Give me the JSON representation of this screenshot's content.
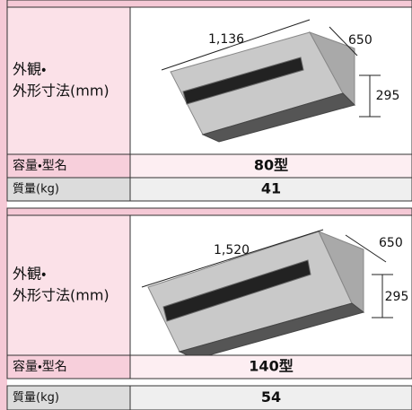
{
  "sections": [
    {
      "appearance_label": [
        "外観・",
        "外形寸法(mm)"
      ],
      "dimensions": {
        "width": "1,136",
        "depth": "650",
        "height": "295"
      },
      "capacity_label": "容量・型名",
      "capacity_value": "80型",
      "mass_label": "質量(kg)",
      "mass_value": 41
    },
    {
      "appearance_label": [
        "外観・",
        "外形寸法(mm)"
      ],
      "dimensions": {
        "width": "1,520",
        "depth": "650",
        "height": "295"
      },
      "capacity_label": "容量・型名",
      "capacity_value": "140型",
      "mass_label": "質量(kg)",
      "mass_value": 54
    }
  ]
}
